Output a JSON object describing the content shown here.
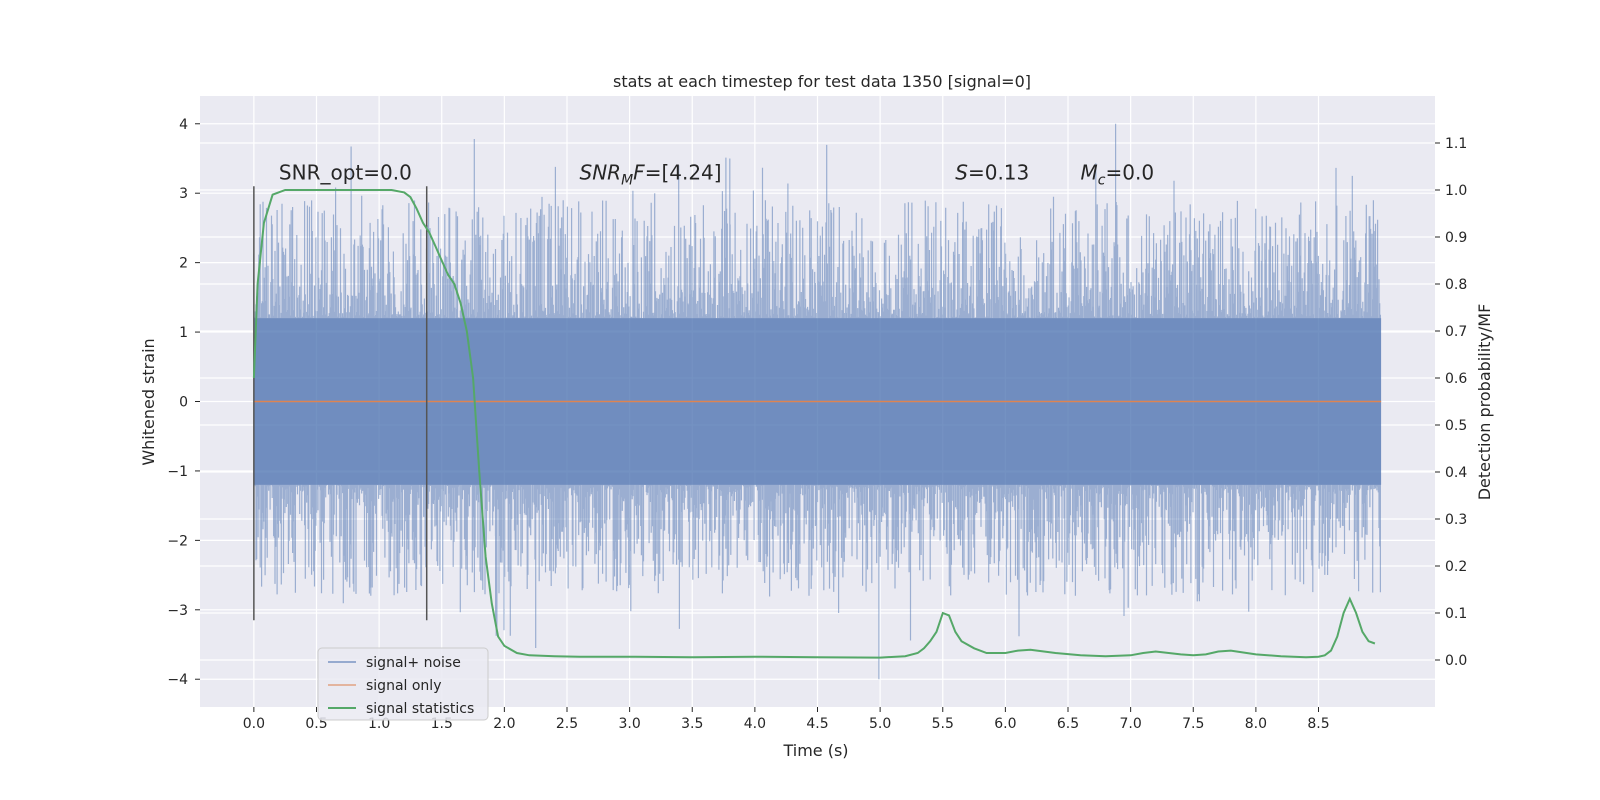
{
  "chart_data": {
    "type": "line",
    "title": "stats at each timestep for test data 1350 [signal=0]",
    "xlabel": "Time (s)",
    "ylabel": "Whitened strain",
    "y2label": "Detection probability/MF",
    "xlim": [
      -0.43,
      9.43
    ],
    "ylim": [
      -4.4,
      4.4
    ],
    "y2lim": [
      -0.1,
      1.2
    ],
    "xticks": [
      "0.0",
      "0.5",
      "1.0",
      "1.5",
      "2.0",
      "2.5",
      "3.0",
      "3.5",
      "4.0",
      "4.5",
      "5.0",
      "5.5",
      "6.0",
      "6.5",
      "7.0",
      "7.5",
      "8.0",
      "8.5"
    ],
    "yticks": [
      "4",
      "3",
      "2",
      "1",
      "0",
      "−1",
      "−2",
      "−3",
      "−4"
    ],
    "y2ticks": [
      "1.1",
      "1.0",
      "0.9",
      "0.8",
      "0.7",
      "0.6",
      "0.5",
      "0.4",
      "0.3",
      "0.2",
      "0.1",
      "0.0"
    ],
    "grid": true,
    "legend_position": "lower-left",
    "colors": {
      "noise": "#4c72b0",
      "signal": "#dd8452",
      "stats": "#55a868",
      "background": "#eaeaf2",
      "marker": "#555555"
    },
    "series": [
      {
        "name": "signal+ noise",
        "color": "#4c72b0",
        "description": "dense noisy whitened strain, mostly within ±1.2, spikes to about ±4",
        "envelope": {
          "t_start": 0.0,
          "t_end": 9.0,
          "core_range": [
            -1.2,
            1.2
          ],
          "peak_max": 4.0,
          "peak_min": -4.0
        }
      },
      {
        "name": "signal only",
        "color": "#dd8452",
        "values_constant": 0.0,
        "t_range": [
          0.0,
          9.0
        ]
      },
      {
        "name": "signal statistics",
        "color": "#55a868",
        "x": [
          0.0,
          0.03,
          0.08,
          0.15,
          0.25,
          0.4,
          0.6,
          0.8,
          1.0,
          1.1,
          1.2,
          1.25,
          1.3,
          1.35,
          1.4,
          1.45,
          1.5,
          1.55,
          1.6,
          1.65,
          1.7,
          1.75,
          1.8,
          1.85,
          1.9,
          1.95,
          2.0,
          2.1,
          2.2,
          2.4,
          2.6,
          3.0,
          3.5,
          4.0,
          4.5,
          5.0,
          5.2,
          5.3,
          5.35,
          5.4,
          5.45,
          5.5,
          5.55,
          5.6,
          5.65,
          5.75,
          5.85,
          6.0,
          6.1,
          6.2,
          6.4,
          6.6,
          6.8,
          7.0,
          7.1,
          7.2,
          7.4,
          7.5,
          7.6,
          7.7,
          7.8,
          8.0,
          8.2,
          8.4,
          8.5,
          8.55,
          8.6,
          8.65,
          8.7,
          8.75,
          8.8,
          8.85,
          8.9,
          8.95
        ],
        "values": [
          0.6,
          0.8,
          0.93,
          0.99,
          1.0,
          1.0,
          1.0,
          1.0,
          1.0,
          1.0,
          0.995,
          0.985,
          0.96,
          0.93,
          0.91,
          0.88,
          0.85,
          0.82,
          0.8,
          0.76,
          0.7,
          0.6,
          0.4,
          0.22,
          0.12,
          0.05,
          0.03,
          0.015,
          0.01,
          0.008,
          0.007,
          0.007,
          0.006,
          0.007,
          0.006,
          0.005,
          0.008,
          0.015,
          0.025,
          0.04,
          0.06,
          0.1,
          0.095,
          0.06,
          0.04,
          0.025,
          0.015,
          0.015,
          0.02,
          0.022,
          0.015,
          0.01,
          0.008,
          0.01,
          0.015,
          0.018,
          0.012,
          0.01,
          0.012,
          0.018,
          0.02,
          0.012,
          0.008,
          0.006,
          0.007,
          0.01,
          0.02,
          0.05,
          0.1,
          0.13,
          0.1,
          0.06,
          0.04,
          0.035
        ]
      }
    ],
    "vlines": [
      {
        "x": 0.0,
        "y": [
          -3.15,
          3.1
        ]
      },
      {
        "x": 1.38,
        "y": [
          -3.15,
          3.1
        ]
      }
    ],
    "annotations": [
      {
        "key": "snr_opt",
        "text": "SNR_opt=0.0",
        "x": 0.2,
        "y": 3.2
      },
      {
        "key": "snr_mf",
        "text": "SNR",
        "sub": "M",
        "tail": "F=[4.24]",
        "x": 2.6,
        "y": 3.2
      },
      {
        "key": "s",
        "text": "S",
        "tail": "=0.13",
        "x": 5.6,
        "y": 3.2
      },
      {
        "key": "mc",
        "text": "M",
        "sub": "c",
        "tail": "=0.0",
        "x": 6.6,
        "y": 3.2
      }
    ]
  }
}
